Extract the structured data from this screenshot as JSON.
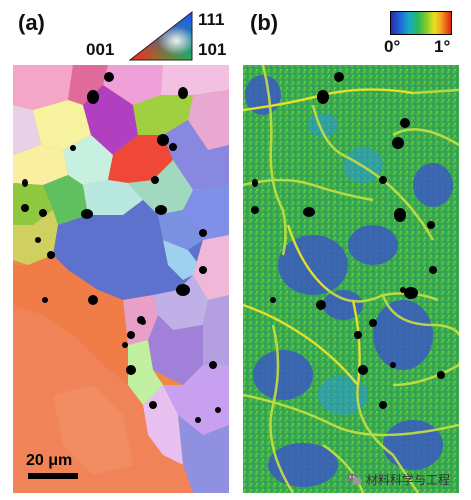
{
  "panel_a": {
    "label": "(a)",
    "ipf_key": {
      "top": "111",
      "left": "001",
      "right": "101"
    },
    "scale_bar": "20 μm"
  },
  "panel_b": {
    "label": "(b)",
    "color_bar": {
      "min": "0°",
      "max": "1°"
    }
  },
  "watermark": "材料科学与工程",
  "colors": {
    "kam_low": "#2a3fb0",
    "kam_mid": "#3cb84a",
    "kam_high": "#e8e020"
  }
}
